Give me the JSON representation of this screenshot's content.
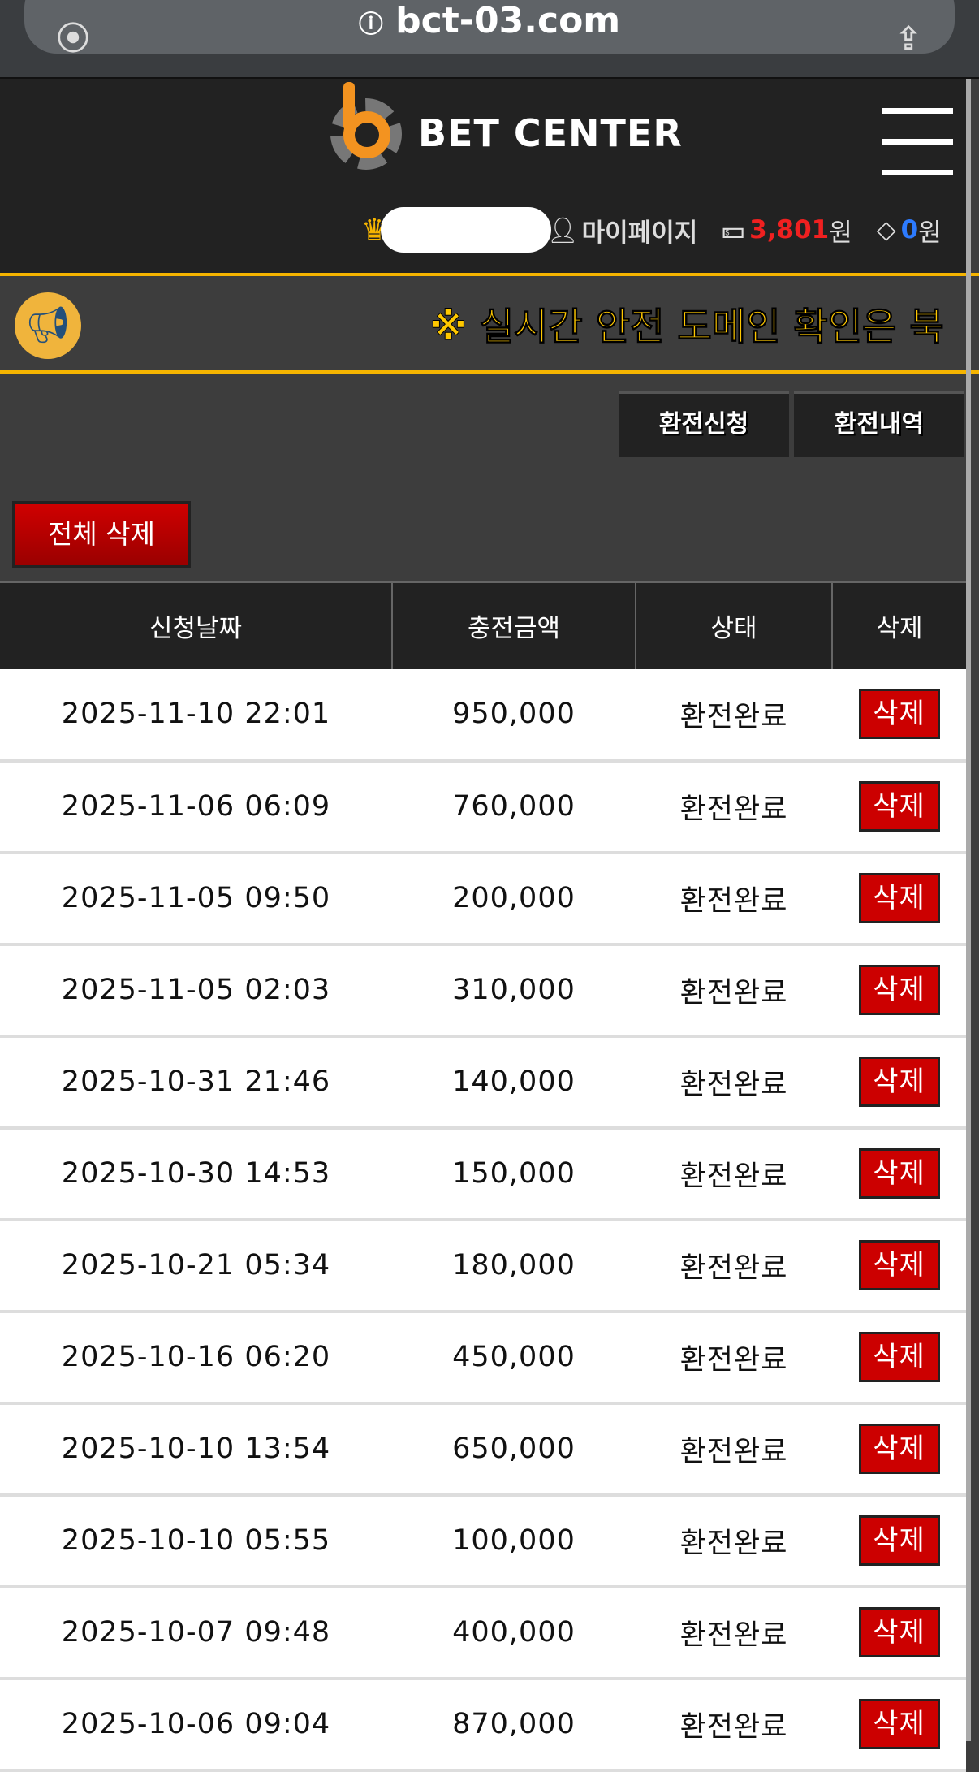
{
  "browser": {
    "url": "bct-03.com"
  },
  "header": {
    "logo_text": "BET CENTER",
    "mypage": "마이페이지",
    "money": "3,801",
    "money_unit": "원",
    "point": "0",
    "point_unit": "원"
  },
  "notice": {
    "text": "※ 실시간 안전 도메인 확인은 북"
  },
  "tabs": [
    {
      "label": "환전신청"
    },
    {
      "label": "환전내역"
    }
  ],
  "delete_all": "전체 삭제",
  "table": {
    "headers": [
      "신청날짜",
      "충전금액",
      "상태",
      "삭제"
    ],
    "rows": [
      {
        "date": "2025-11-10 22:01",
        "amount": "950,000",
        "status": "환전완료",
        "action": "삭제"
      },
      {
        "date": "2025-11-06 06:09",
        "amount": "760,000",
        "status": "환전완료",
        "action": "삭제"
      },
      {
        "date": "2025-11-05 09:50",
        "amount": "200,000",
        "status": "환전완료",
        "action": "삭제"
      },
      {
        "date": "2025-11-05 02:03",
        "amount": "310,000",
        "status": "환전완료",
        "action": "삭제"
      },
      {
        "date": "2025-10-31 21:46",
        "amount": "140,000",
        "status": "환전완료",
        "action": "삭제"
      },
      {
        "date": "2025-10-30 14:53",
        "amount": "150,000",
        "status": "환전완료",
        "action": "삭제"
      },
      {
        "date": "2025-10-21 05:34",
        "amount": "180,000",
        "status": "환전완료",
        "action": "삭제"
      },
      {
        "date": "2025-10-16 06:20",
        "amount": "450,000",
        "status": "환전완료",
        "action": "삭제"
      },
      {
        "date": "2025-10-10 13:54",
        "amount": "650,000",
        "status": "환전완료",
        "action": "삭제"
      },
      {
        "date": "2025-10-10 05:55",
        "amount": "100,000",
        "status": "환전완료",
        "action": "삭제"
      },
      {
        "date": "2025-10-07 09:48",
        "amount": "400,000",
        "status": "환전완료",
        "action": "삭제"
      },
      {
        "date": "2025-10-06 09:04",
        "amount": "870,000",
        "status": "환전완료",
        "action": "삭제"
      }
    ]
  }
}
